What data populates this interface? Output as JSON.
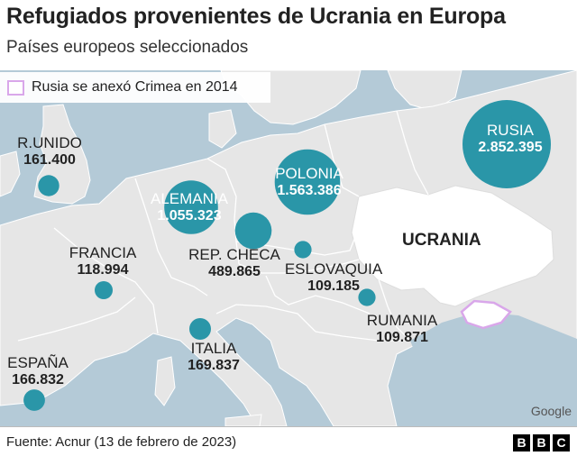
{
  "title": "Refugiados provenientes de Ucrania en Europa",
  "subtitle": "Países europeos seleccionados",
  "legend": {
    "label": "Rusia se anexó Crimea en 2014",
    "color": "#d9a7ea"
  },
  "map": {
    "highlight_label": "UCRANIA",
    "attribution": "Google",
    "colors": {
      "sea": "#b4cad7",
      "land": "#e6e6e6",
      "ukraine": "#ffffff",
      "border": "#ffffff",
      "bubble": "#2a96a8",
      "crimea": "#d9a7ea"
    }
  },
  "refugees": [
    {
      "country": "R.UNIDO",
      "count": "161.400",
      "value": 161400
    },
    {
      "country": "FRANCIA",
      "count": "118.994",
      "value": 118994
    },
    {
      "country": "ESPAÑA",
      "count": "166.832",
      "value": 166832
    },
    {
      "country": "ALEMANIA",
      "count": "1.055.323",
      "value": 1055323
    },
    {
      "country": "REP. CHECA",
      "count": "489.865",
      "value": 489865
    },
    {
      "country": "ITALIA",
      "count": "169.837",
      "value": 169837
    },
    {
      "country": "POLONIA",
      "count": "1.563.386",
      "value": 1563386
    },
    {
      "country": "ESLOVAQUIA",
      "count": "109.185",
      "value": 109185
    },
    {
      "country": "RUMANIA",
      "count": "109.871",
      "value": 109871
    },
    {
      "country": "RUSIA",
      "count": "2.852.395",
      "value": 2852395
    }
  ],
  "footer": {
    "source": "Fuente: Acnur (13 de febrero de 2023)",
    "brand": [
      "B",
      "B",
      "C"
    ]
  }
}
